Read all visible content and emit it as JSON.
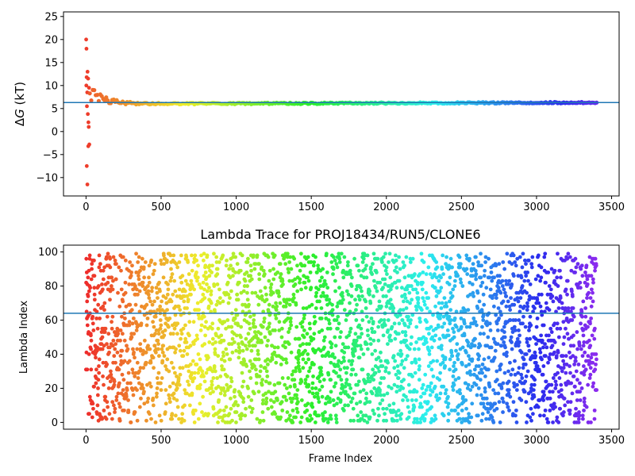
{
  "chart_data": [
    {
      "type": "scatter",
      "title": "",
      "xlabel": "",
      "ylabel_prefix": "Δ",
      "ylabel_symbol": "G",
      "ylabel_suffix": " (kT)",
      "xlim": [
        -150,
        3550
      ],
      "ylim": [
        -14,
        26
      ],
      "xticks": [
        0,
        500,
        1000,
        1500,
        2000,
        2500,
        3000,
        3500
      ],
      "yticks": [
        -10,
        -5,
        0,
        5,
        10,
        15,
        20,
        25
      ],
      "reference_line": {
        "y": 6.3,
        "color": "#1f77b4"
      },
      "colormap": "rainbow",
      "series": [
        {
          "marker_color_by": "frame",
          "outlier_points": [
            {
              "x": 1,
              "y": 20.0
            },
            {
              "x": 3,
              "y": 18.0
            },
            {
              "x": 10,
              "y": 13.0
            },
            {
              "x": 4,
              "y": 11.8
            },
            {
              "x": 14,
              "y": 11.5
            },
            {
              "x": 2,
              "y": 10.0
            },
            {
              "x": 20,
              "y": 9.5
            },
            {
              "x": 8,
              "y": 8.5
            },
            {
              "x": 6,
              "y": 5.5
            },
            {
              "x": 12,
              "y": 3.8
            },
            {
              "x": 16,
              "y": 2.0
            },
            {
              "x": 18,
              "y": 1.0
            },
            {
              "x": 22,
              "y": -2.8
            },
            {
              "x": 15,
              "y": -3.2
            },
            {
              "x": 5,
              "y": -7.5
            },
            {
              "x": 9,
              "y": -11.5
            }
          ],
          "trend": {
            "x_range": [
              25,
              3400
            ],
            "point_count": 340,
            "start_value": 8.5,
            "settle_value": 6.0,
            "end_value": 6.3,
            "initial_spread": 2.0
          }
        }
      ]
    },
    {
      "type": "scatter",
      "title": "Lambda Trace for PROJ18434/RUN5/CLONE6",
      "xlabel": "Frame Index",
      "ylabel": "Lambda Index",
      "xlim": [
        -150,
        3550
      ],
      "ylim": [
        -4,
        104
      ],
      "xticks": [
        0,
        500,
        1000,
        1500,
        2000,
        2500,
        3000,
        3500
      ],
      "yticks": [
        0,
        20,
        40,
        60,
        80,
        100
      ],
      "reference_line": {
        "y": 64,
        "color": "#1f77b4"
      },
      "colormap": "rainbow",
      "series": [
        {
          "marker_color_by": "frame",
          "x_range": [
            0,
            3400
          ],
          "point_count": 3400,
          "lambda_range": [
            0,
            99
          ]
        }
      ]
    }
  ]
}
